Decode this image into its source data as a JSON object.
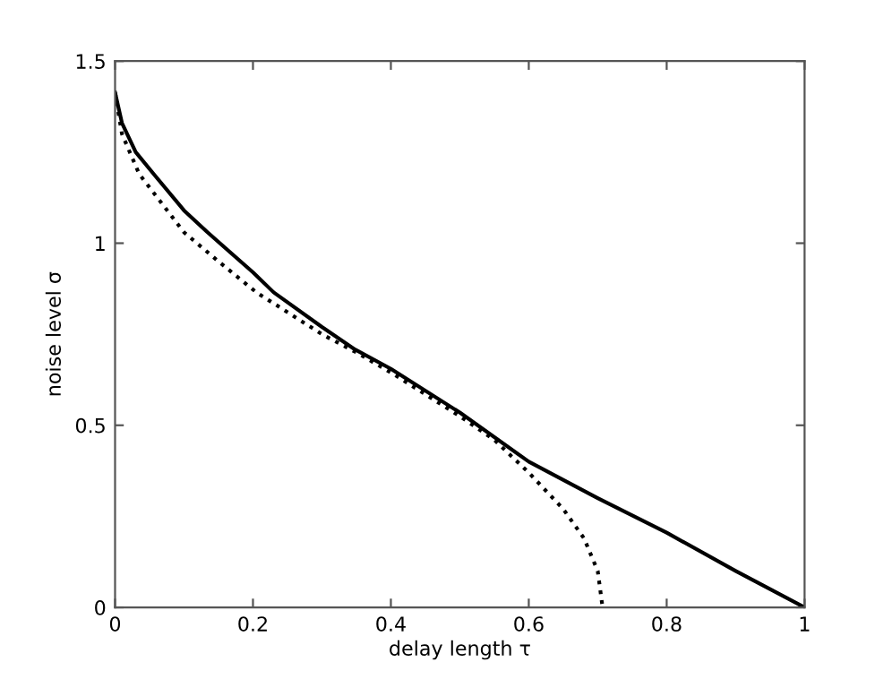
{
  "chart_data": {
    "type": "line",
    "xlabel": "delay length τ",
    "ylabel": "noise level σ",
    "xlim": [
      0,
      1
    ],
    "ylim": [
      0,
      1.5
    ],
    "xticks": [
      0,
      0.2,
      0.4,
      0.6,
      0.8,
      1
    ],
    "yticks": [
      0,
      0.5,
      1,
      1.5
    ],
    "grid": false,
    "legend": false,
    "marker": "none",
    "series": [
      {
        "color": "#000000",
        "line_style": "solid",
        "x": [
          0,
          0.01,
          0.03,
          0.056,
          0.1,
          0.134,
          0.2,
          0.23,
          0.3,
          0.348,
          0.4,
          0.5,
          0.6,
          0.7,
          0.8,
          0.9,
          1
        ],
        "values": [
          1.414,
          1.33,
          1.25,
          1.19,
          1.09,
          1.03,
          0.92,
          0.865,
          0.77,
          0.708,
          0.655,
          0.535,
          0.4,
          0.3,
          0.205,
          0.1,
          0
        ]
      },
      {
        "color": "#000000",
        "line_style": "dotted",
        "x": [
          0,
          0.01,
          0.035,
          0.1,
          0.15,
          0.205,
          0.3,
          0.35,
          0.4,
          0.45,
          0.5,
          0.55,
          0.6,
          0.65,
          0.68,
          0.7,
          0.707
        ],
        "values": [
          1.414,
          1.3,
          1.19,
          1.03,
          0.95,
          0.865,
          0.75,
          0.7,
          0.645,
          0.585,
          0.525,
          0.46,
          0.37,
          0.27,
          0.19,
          0.1,
          0
        ]
      }
    ]
  }
}
